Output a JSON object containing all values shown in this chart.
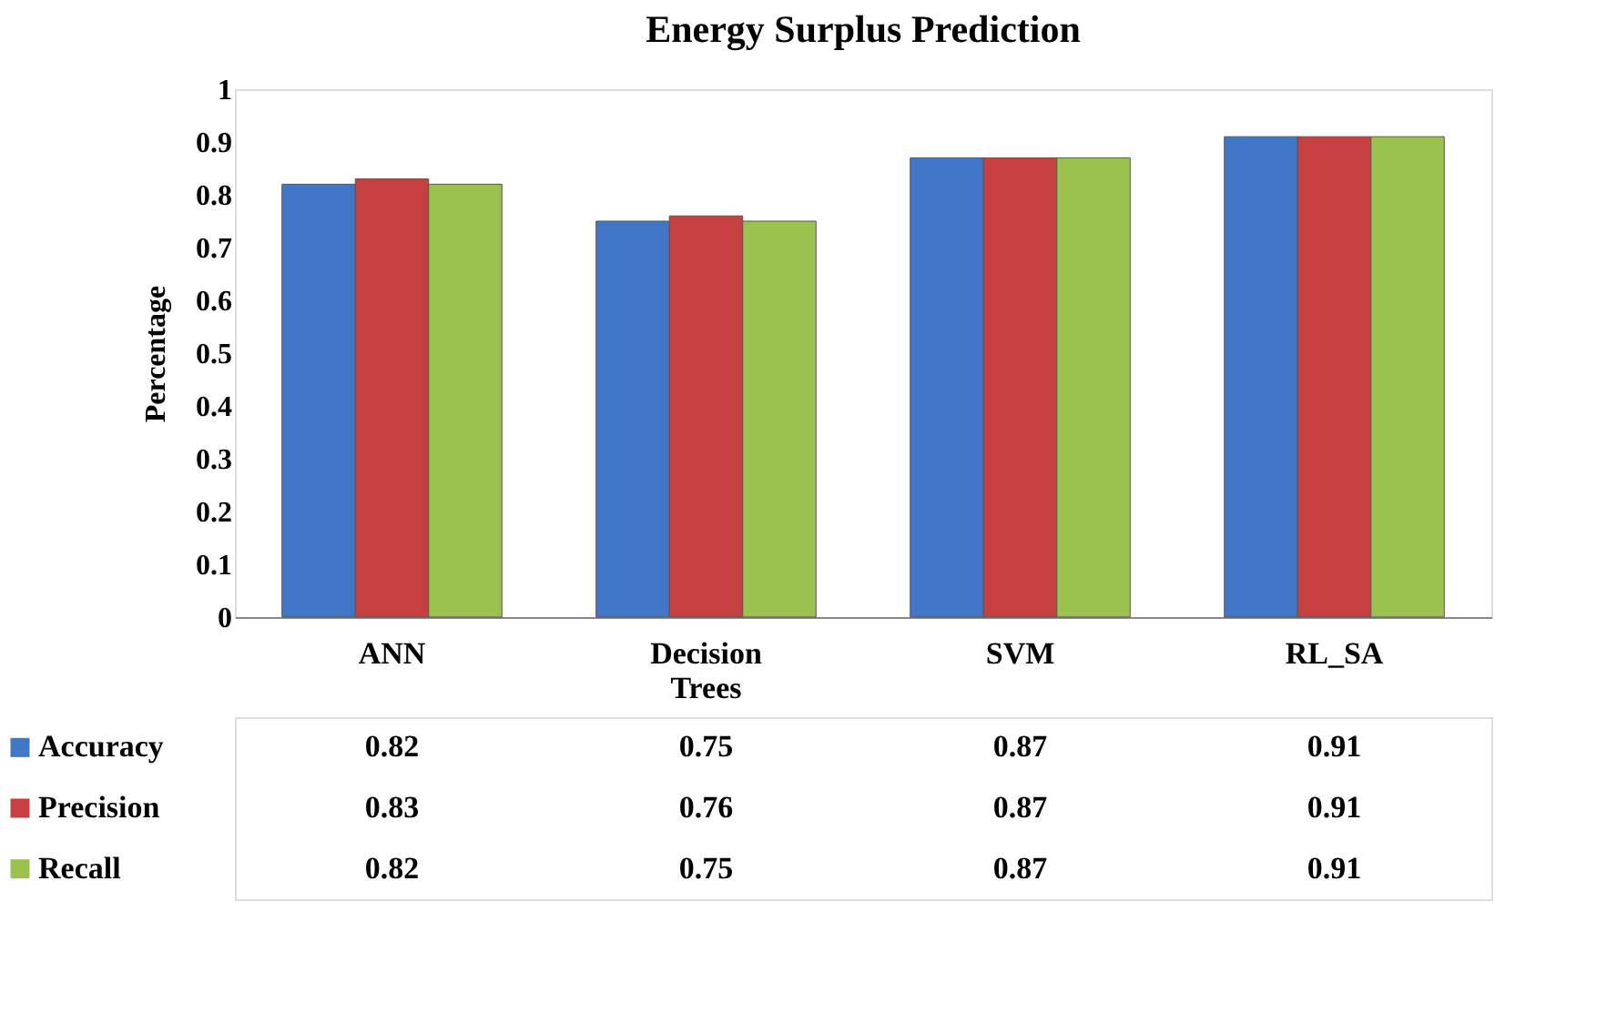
{
  "chart_data": {
    "type": "bar",
    "title": "Energy Surplus Prediction",
    "ylabel": "Percentage",
    "categories": [
      "ANN",
      "Decision Trees",
      "SVM",
      "RL_SA"
    ],
    "series": [
      {
        "name": "Accuracy",
        "color": "#4276c6",
        "values": [
          0.82,
          0.75,
          0.87,
          0.91
        ]
      },
      {
        "name": "Precision",
        "color": "#c5403f",
        "values": [
          0.83,
          0.76,
          0.87,
          0.91
        ]
      },
      {
        "name": "Recall",
        "color": "#9bc24f",
        "values": [
          0.82,
          0.75,
          0.87,
          0.91
        ]
      }
    ],
    "ylim": [
      0,
      1
    ],
    "yticks": [
      0,
      0.1,
      0.2,
      0.3,
      0.4,
      0.5,
      0.6,
      0.7,
      0.8,
      0.9,
      1
    ],
    "grid": false,
    "legend": "bottom",
    "data_labels": true
  }
}
